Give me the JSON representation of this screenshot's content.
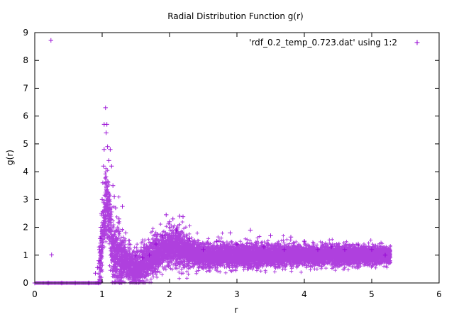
{
  "chart_data": {
    "type": "scatter",
    "title": "Radial Distribution Function g(r)",
    "xlabel": "r",
    "ylabel": "g(r)",
    "xlim": [
      0,
      6
    ],
    "ylim": [
      0,
      9
    ],
    "xticks": [
      "0",
      "1",
      "2",
      "3",
      "4",
      "5",
      "6"
    ],
    "yticks": [
      "0",
      "1",
      "2",
      "3",
      "4",
      "5",
      "6",
      "7",
      "8",
      "9"
    ],
    "grid": false,
    "legend_position": "top-right",
    "marker": "+",
    "series": [
      {
        "name": "'rdf_0.2_temp_0.723.dat' using 1:2",
        "color": "#9400d3",
        "points": [
          [
            0.24,
            8.72
          ],
          [
            0.25,
            1.01
          ],
          [
            0.0,
            0.0
          ],
          [
            0.2,
            0.0
          ],
          [
            0.4,
            0.0
          ],
          [
            0.6,
            0.0
          ],
          [
            0.8,
            0.0
          ],
          [
            0.95,
            0.0
          ],
          [
            0.9,
            0.35
          ],
          [
            0.93,
            0.55
          ],
          [
            0.95,
            0.8
          ],
          [
            0.96,
            1.2
          ],
          [
            0.97,
            1.6
          ],
          [
            0.98,
            2.0
          ],
          [
            0.99,
            2.5
          ],
          [
            1.0,
            3.0
          ],
          [
            1.01,
            3.6
          ],
          [
            1.02,
            4.2
          ],
          [
            1.03,
            4.8
          ],
          [
            1.03,
            5.7
          ],
          [
            1.05,
            6.3
          ],
          [
            1.06,
            5.4
          ],
          [
            1.07,
            5.7
          ],
          [
            1.08,
            4.9
          ],
          [
            1.1,
            4.4
          ],
          [
            1.12,
            4.8
          ],
          [
            1.14,
            4.2
          ],
          [
            1.16,
            3.5
          ],
          [
            1.18,
            3.1
          ],
          [
            1.2,
            2.7
          ],
          [
            1.25,
            2.3
          ],
          [
            1.3,
            2.75
          ],
          [
            1.35,
            1.8
          ],
          [
            1.4,
            1.4
          ],
          [
            1.5,
            1.0
          ],
          [
            1.6,
            0.9
          ],
          [
            1.7,
            1.0
          ],
          [
            1.8,
            1.4
          ],
          [
            1.9,
            1.7
          ],
          [
            1.95,
            2.45
          ],
          [
            2.0,
            2.2
          ],
          [
            2.05,
            2.3
          ],
          [
            2.1,
            1.9
          ],
          [
            2.15,
            2.4
          ],
          [
            2.2,
            2.38
          ],
          [
            2.3,
            1.6
          ],
          [
            2.5,
            1.2
          ],
          [
            2.7,
            1.5
          ],
          [
            2.9,
            1.8
          ],
          [
            3.0,
            1.4
          ],
          [
            3.2,
            1.9
          ],
          [
            3.4,
            1.3
          ],
          [
            3.5,
            1.7
          ],
          [
            3.7,
            1.2
          ],
          [
            3.8,
            1.65
          ],
          [
            4.0,
            1.5
          ],
          [
            4.2,
            1.2
          ],
          [
            4.4,
            1.3
          ],
          [
            4.6,
            1.2
          ],
          [
            4.8,
            1.4
          ],
          [
            5.0,
            1.2
          ],
          [
            5.2,
            1.0
          ]
        ]
      }
    ]
  }
}
